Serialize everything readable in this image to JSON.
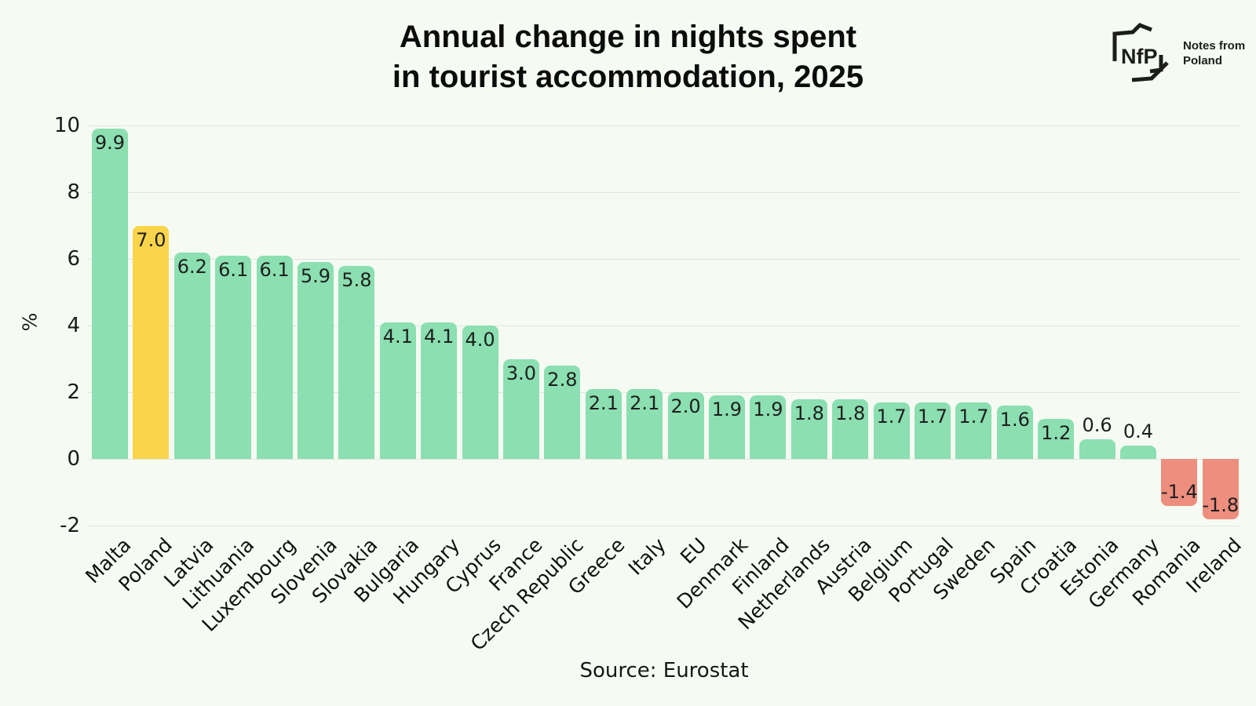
{
  "page": {
    "background": "#f5fbf3"
  },
  "header": {
    "title_lines": [
      "Annual change in nights spent",
      "in tourist accommodation, 2025"
    ],
    "logo": {
      "abbr": "NfP",
      "name_lines": [
        "Notes from",
        "Poland"
      ],
      "color": "#1d1d1b"
    }
  },
  "chart_data": {
    "type": "bar",
    "title": "Annual change in nights spent in tourist accommodation, 2025",
    "xlabel": "",
    "ylabel": "%",
    "ylim": [
      -2.4,
      10.1
    ],
    "y_ticks": [
      10,
      8,
      6,
      4,
      2,
      0,
      -2
    ],
    "grid": true,
    "legend": "none",
    "categories": [
      "Malta",
      "Poland",
      "Latvia",
      "Lithuania",
      "Luxembourg",
      "Slovenia",
      "Slovakia",
      "Bulgaria",
      "Hungary",
      "Cyprus",
      "France",
      "Czech Republic",
      "Greece",
      "Italy",
      "EU",
      "Denmark",
      "Finland",
      "Netherlands",
      "Austria",
      "Belgium",
      "Portugal",
      "Sweden",
      "Spain",
      "Croatia",
      "Estonia",
      "Germany",
      "Romania",
      "Ireland"
    ],
    "values": [
      9.9,
      7.0,
      6.2,
      6.1,
      6.1,
      5.9,
      5.8,
      4.1,
      4.1,
      4.0,
      3.0,
      2.8,
      2.1,
      2.1,
      2.0,
      1.9,
      1.9,
      1.8,
      1.8,
      1.7,
      1.7,
      1.7,
      1.6,
      1.2,
      0.6,
      0.4,
      -1.4,
      -1.8
    ],
    "highlight_category": "Poland",
    "colors": {
      "positive": "#8bdfb1",
      "highlight": "#fad44b",
      "negative": "#ed8e7e",
      "gridline": "#dfe4df",
      "text": "#151515"
    },
    "source": "Source: Eurostat"
  }
}
